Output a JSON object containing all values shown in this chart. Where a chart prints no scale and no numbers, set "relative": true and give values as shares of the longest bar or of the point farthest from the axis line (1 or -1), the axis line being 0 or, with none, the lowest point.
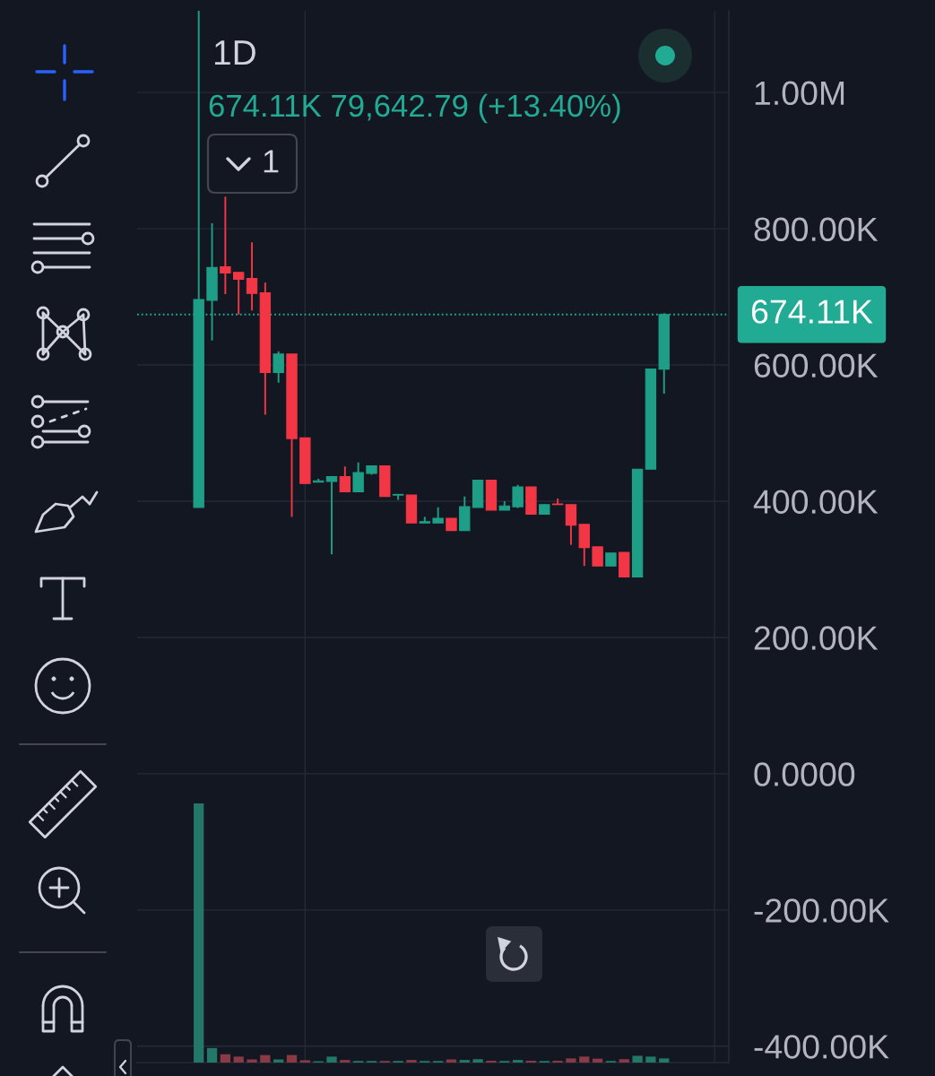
{
  "chart_data": [
    {
      "type": "candlestick",
      "title": "1D",
      "subtitle": "674.11K 79,642.79 (+13.40%)",
      "annotations": [
        "1"
      ],
      "categories": [
        null,
        null,
        null,
        null,
        null,
        null,
        null,
        null,
        null,
        null,
        null,
        null,
        null,
        null,
        null,
        null,
        null,
        null,
        null,
        null,
        null,
        null,
        null,
        null,
        null,
        null,
        null,
        null,
        null,
        null,
        null,
        null,
        null,
        null,
        null,
        null
      ],
      "ohlc": [
        [
          391000,
          1120000,
          391000,
          696000
        ],
        [
          695000,
          808000,
          636000,
          743000
        ],
        [
          744000,
          847000,
          704000,
          735000
        ],
        [
          736000,
          736000,
          674000,
          726000
        ],
        [
          727000,
          780000,
          680000,
          705000
        ],
        [
          706000,
          721000,
          527000,
          589000
        ],
        [
          589000,
          620000,
          574000,
          616000
        ],
        [
          616000,
          616000,
          377000,
          492000
        ],
        [
          493000,
          493000,
          426000,
          426000
        ],
        [
          428000,
          433000,
          428000,
          430000
        ],
        [
          429000,
          436000,
          322000,
          436000
        ],
        [
          436000,
          451000,
          414000,
          414000
        ],
        [
          414000,
          457000,
          414000,
          442000
        ],
        [
          441000,
          452000,
          439000,
          452000
        ],
        [
          452000,
          452000,
          407000,
          407000
        ],
        [
          409000,
          410000,
          402000,
          410000
        ],
        [
          409000,
          409000,
          368000,
          368000
        ],
        [
          368000,
          377000,
          368000,
          370000
        ],
        [
          368000,
          391000,
          368000,
          375000
        ],
        [
          375000,
          375000,
          357000,
          357000
        ],
        [
          357000,
          407000,
          357000,
          392000
        ],
        [
          391000,
          431000,
          391000,
          431000
        ],
        [
          431000,
          431000,
          387000,
          387000
        ],
        [
          387000,
          400000,
          387000,
          393000
        ],
        [
          392000,
          424000,
          390000,
          421000
        ],
        [
          421000,
          421000,
          381000,
          381000
        ],
        [
          381000,
          395000,
          381000,
          395000
        ],
        [
          396000,
          404000,
          395000,
          395000
        ],
        [
          395000,
          395000,
          336000,
          365000
        ],
        [
          366000,
          366000,
          305000,
          332000
        ],
        [
          333000,
          333000,
          305000,
          305000
        ],
        [
          305000,
          324000,
          305000,
          324000
        ],
        [
          325000,
          325000,
          289000,
          289000
        ],
        [
          289000,
          447000,
          289000,
          447000
        ],
        [
          447000,
          594000,
          447000,
          594000
        ],
        [
          594000,
          676000,
          558000,
          674110
        ]
      ],
      "colors": [
        "#1f9e87",
        "#1f9e87",
        "#f23645",
        "#f23645",
        "#f23645",
        "#f23645",
        "#1f9e87",
        "#f23645",
        "#f23645",
        "#1f9e87",
        "#1f9e87",
        "#f23645",
        "#1f9e87",
        "#1f9e87",
        "#f23645",
        "#1f9e87",
        "#f23645",
        "#1f9e87",
        "#1f9e87",
        "#f23645",
        "#1f9e87",
        "#1f9e87",
        "#f23645",
        "#1f9e87",
        "#1f9e87",
        "#f23645",
        "#1f9e87",
        "#f23645",
        "#f23645",
        "#f23645",
        "#f23645",
        "#1f9e87",
        "#f23645",
        "#1f9e87",
        "#1f9e87",
        "#1f9e87"
      ],
      "ylim": [
        -424000,
        1120000
      ],
      "yticks": [
        {
          "value": 1000000,
          "label": "1.00M"
        },
        {
          "value": 800000,
          "label": "800.00K"
        },
        {
          "value": 600000,
          "label": "600.00K"
        },
        {
          "value": 400000,
          "label": "400.00K"
        },
        {
          "value": 200000,
          "label": "200.00K"
        },
        {
          "value": 0,
          "label": "0.0000"
        },
        {
          "value": -200000,
          "label": "-200.00K"
        },
        {
          "value": -400000,
          "label": "-400.00K"
        }
      ],
      "grid": "y",
      "tick_labels": "y",
      "ref_lines": [
        {
          "axis": "y",
          "value": 674110,
          "label": "674.11K",
          "color": "#22ab94",
          "line_style": "dotted"
        }
      ]
    },
    {
      "type": "bar",
      "relative": true,
      "categories": [
        null,
        null,
        null,
        null,
        null,
        null,
        null,
        null,
        null,
        null,
        null,
        null,
        null,
        null,
        null,
        null,
        null,
        null,
        null,
        null,
        null,
        null,
        null,
        null,
        null,
        null,
        null,
        null,
        null,
        null,
        null,
        null,
        null,
        null,
        null,
        null
      ],
      "values": [
        1,
        0.056,
        0.032,
        0.023,
        0.012,
        0.029,
        0.012,
        0.029,
        0.009,
        0.005,
        0.023,
        0.01,
        0.006,
        0.006,
        0.006,
        0.006,
        0.01,
        0.006,
        0.006,
        0.012,
        0.01,
        0.013,
        0.007,
        0.006,
        0.01,
        0.007,
        0.006,
        0.007,
        0.016,
        0.023,
        0.015,
        0.006,
        0.013,
        0.026,
        0.023,
        0.016
      ],
      "colors": [
        "#23786a",
        "#23786a",
        "#8a3a45",
        "#8a3a45",
        "#8a3a45",
        "#8a3a45",
        "#23786a",
        "#8a3a45",
        "#8a3a45",
        "#23786a",
        "#23786a",
        "#8a3a45",
        "#23786a",
        "#23786a",
        "#8a3a45",
        "#23786a",
        "#8a3a45",
        "#23786a",
        "#23786a",
        "#8a3a45",
        "#23786a",
        "#23786a",
        "#8a3a45",
        "#23786a",
        "#23786a",
        "#8a3a45",
        "#23786a",
        "#8a3a45",
        "#8a3a45",
        "#8a3a45",
        "#8a3a45",
        "#23786a",
        "#8a3a45",
        "#23786a",
        "#23786a",
        "#23786a"
      ],
      "tick_labels": false
    }
  ]
}
